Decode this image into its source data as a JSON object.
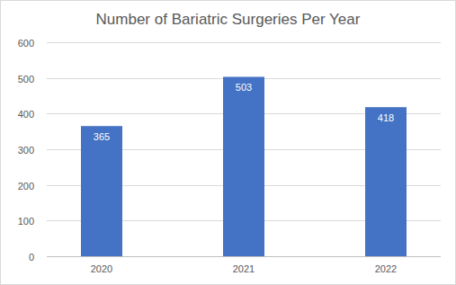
{
  "chart_data": {
    "type": "bar",
    "title": "Number of Bariatric Surgeries Per Year",
    "categories": [
      "2020",
      "2021",
      "2022"
    ],
    "values": [
      365,
      503,
      418
    ],
    "color": "#4472c4",
    "ylim": [
      0,
      600
    ],
    "yticks": [
      0,
      100,
      200,
      300,
      400,
      500,
      600
    ],
    "grid": true,
    "data_labels": true
  }
}
